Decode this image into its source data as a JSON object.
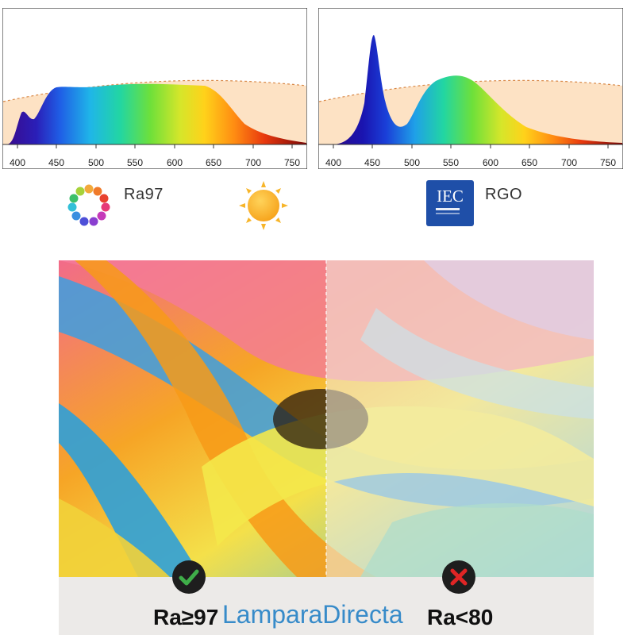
{
  "spectrum_charts": [
    {
      "x_ticks": [
        "400",
        "450",
        "500",
        "550",
        "600",
        "650",
        "700",
        "750"
      ]
    },
    {
      "x_ticks": [
        "400",
        "450",
        "500",
        "550",
        "600",
        "650",
        "700",
        "750"
      ]
    }
  ],
  "badges": {
    "ra_label": "Ra97",
    "rgo_label": "RGO",
    "iec_logo_text": "IEC"
  },
  "comparison": {
    "left_label": "Ra≥97",
    "right_label": "Ra<80",
    "left_mark_icon": "check-icon",
    "right_mark_icon": "cross-icon"
  },
  "watermark": "LamparaDirecta",
  "colors": {
    "check_green": "#3fae49",
    "cross_red": "#e02525",
    "iec_blue": "#1f4fa8",
    "watermark_blue": "#2e86c8"
  }
}
